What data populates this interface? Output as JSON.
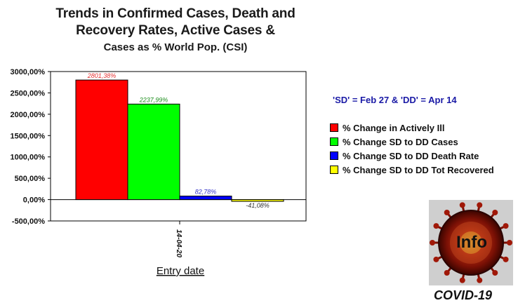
{
  "chart_data": {
    "type": "bar",
    "title": [
      "Trends in Confirmed Cases, Death and",
      "Recovery Rates, Active Cases &",
      "Cases as % World Pop. (CSI)"
    ],
    "xlabel": "Entry date",
    "ylabel": "",
    "categories": [
      "14-04-20"
    ],
    "ylim": [
      -500,
      3000
    ],
    "yticks": [
      -500,
      0,
      500,
      1000,
      1500,
      2000,
      2500,
      3000
    ],
    "ytick_labels": [
      "-500,00%",
      "0,00%",
      "500,00%",
      "1000,00%",
      "1500,00%",
      "2000,00%",
      "2500,00%",
      "3000,00%"
    ],
    "grid": false,
    "legend_position": "right",
    "series": [
      {
        "name": "% Change in Actively Ill",
        "values": [
          2801.38
        ],
        "label": "2801,38%",
        "color": "#ff0000",
        "label_color": "#e53030"
      },
      {
        "name": "% Change SD to DD Cases",
        "values": [
          2237.99
        ],
        "label": "2237,99%",
        "color": "#00ff00",
        "label_color": "#1f8f1f"
      },
      {
        "name": "% Change SD to DD Death Rate",
        "values": [
          82.78
        ],
        "label": "82,78%",
        "color": "#0000ff",
        "label_color": "#3535c8"
      },
      {
        "name": "% Change SD to DD Tot Recovered",
        "values": [
          -41.08
        ],
        "label": "-41,08%",
        "color": "#ffff00",
        "label_color": "#333333"
      }
    ]
  },
  "annotation": {
    "note": "'SD' = Feb 27 & 'DD' = Apr 14"
  },
  "logo": {
    "text": "Info",
    "caption": "COVID-19"
  }
}
